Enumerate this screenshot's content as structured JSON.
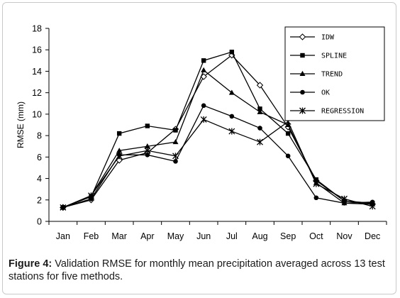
{
  "chart_data": {
    "type": "line",
    "title": "",
    "xlabel": "",
    "ylabel": "RMSE (mm)",
    "ylim": [
      0,
      18
    ],
    "yticks": [
      0,
      2,
      4,
      6,
      8,
      10,
      12,
      14,
      16,
      18
    ],
    "categories": [
      "Jan",
      "Feb",
      "Mar",
      "Apr",
      "May",
      "Jun",
      "Jul",
      "Aug",
      "Sep",
      "Oct",
      "Nov",
      "Dec"
    ],
    "grid": false,
    "legend_position": "top-right",
    "series": [
      {
        "name": "IDW",
        "marker": "diamond",
        "values": [
          1.3,
          2.0,
          5.7,
          6.4,
          8.6,
          13.5,
          15.5,
          12.7,
          8.8,
          3.8,
          1.9,
          1.6
        ]
      },
      {
        "name": "SPLINE",
        "marker": "square",
        "values": [
          1.3,
          2.3,
          8.2,
          8.9,
          8.5,
          15.0,
          15.8,
          10.5,
          8.2,
          3.9,
          1.9,
          1.7
        ]
      },
      {
        "name": "TREND",
        "marker": "triangle",
        "values": [
          1.3,
          2.4,
          6.6,
          7.0,
          7.4,
          14.1,
          12.0,
          10.2,
          9.0,
          3.6,
          1.7,
          1.6
        ]
      },
      {
        "name": "OK",
        "marker": "circle",
        "values": [
          1.3,
          2.1,
          6.2,
          6.2,
          5.6,
          10.8,
          9.8,
          8.7,
          6.1,
          2.2,
          1.7,
          1.8
        ]
      },
      {
        "name": "REGRESSION",
        "marker": "x-star",
        "values": [
          1.3,
          2.4,
          6.1,
          6.6,
          6.1,
          9.5,
          8.4,
          7.4,
          9.3,
          3.5,
          2.1,
          1.4
        ]
      }
    ]
  },
  "caption": {
    "label": "Figure 4:",
    "text": " Validation RMSE for monthly mean precipitation averaged across 13 test stations for five methods."
  }
}
